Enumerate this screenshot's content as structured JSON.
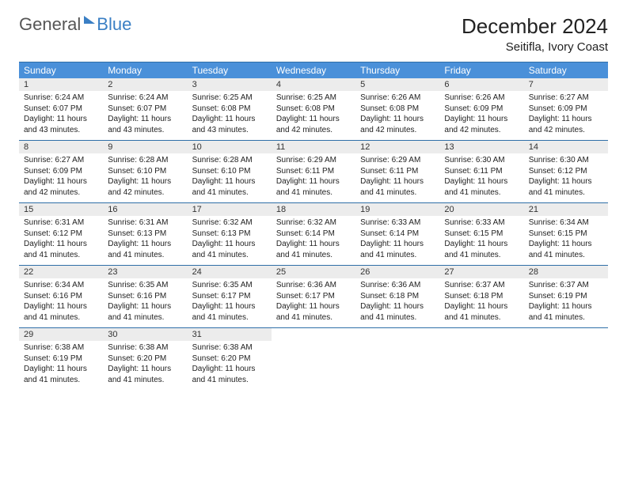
{
  "brand": {
    "word1": "General",
    "word2": "Blue"
  },
  "title": "December 2024",
  "subtitle": "Seitifla, Ivory Coast",
  "colors": {
    "header_bg": "#4a90d9",
    "header_text": "#ffffff",
    "rule": "#2f6fa8",
    "daynum_bg": "#ececec",
    "brand_gray": "#565656",
    "brand_blue": "#3a7fc4"
  },
  "typography": {
    "title_fontsize": 26,
    "subtitle_fontsize": 15,
    "dow_fontsize": 12,
    "daynum_fontsize": 11,
    "body_fontsize": 10
  },
  "dow": [
    "Sunday",
    "Monday",
    "Tuesday",
    "Wednesday",
    "Thursday",
    "Friday",
    "Saturday"
  ],
  "days": [
    {
      "n": "1",
      "sr": "Sunrise: 6:24 AM",
      "ss": "Sunset: 6:07 PM",
      "dl": "Daylight: 11 hours and 43 minutes."
    },
    {
      "n": "2",
      "sr": "Sunrise: 6:24 AM",
      "ss": "Sunset: 6:07 PM",
      "dl": "Daylight: 11 hours and 43 minutes."
    },
    {
      "n": "3",
      "sr": "Sunrise: 6:25 AM",
      "ss": "Sunset: 6:08 PM",
      "dl": "Daylight: 11 hours and 43 minutes."
    },
    {
      "n": "4",
      "sr": "Sunrise: 6:25 AM",
      "ss": "Sunset: 6:08 PM",
      "dl": "Daylight: 11 hours and 42 minutes."
    },
    {
      "n": "5",
      "sr": "Sunrise: 6:26 AM",
      "ss": "Sunset: 6:08 PM",
      "dl": "Daylight: 11 hours and 42 minutes."
    },
    {
      "n": "6",
      "sr": "Sunrise: 6:26 AM",
      "ss": "Sunset: 6:09 PM",
      "dl": "Daylight: 11 hours and 42 minutes."
    },
    {
      "n": "7",
      "sr": "Sunrise: 6:27 AM",
      "ss": "Sunset: 6:09 PM",
      "dl": "Daylight: 11 hours and 42 minutes."
    },
    {
      "n": "8",
      "sr": "Sunrise: 6:27 AM",
      "ss": "Sunset: 6:09 PM",
      "dl": "Daylight: 11 hours and 42 minutes."
    },
    {
      "n": "9",
      "sr": "Sunrise: 6:28 AM",
      "ss": "Sunset: 6:10 PM",
      "dl": "Daylight: 11 hours and 42 minutes."
    },
    {
      "n": "10",
      "sr": "Sunrise: 6:28 AM",
      "ss": "Sunset: 6:10 PM",
      "dl": "Daylight: 11 hours and 41 minutes."
    },
    {
      "n": "11",
      "sr": "Sunrise: 6:29 AM",
      "ss": "Sunset: 6:11 PM",
      "dl": "Daylight: 11 hours and 41 minutes."
    },
    {
      "n": "12",
      "sr": "Sunrise: 6:29 AM",
      "ss": "Sunset: 6:11 PM",
      "dl": "Daylight: 11 hours and 41 minutes."
    },
    {
      "n": "13",
      "sr": "Sunrise: 6:30 AM",
      "ss": "Sunset: 6:11 PM",
      "dl": "Daylight: 11 hours and 41 minutes."
    },
    {
      "n": "14",
      "sr": "Sunrise: 6:30 AM",
      "ss": "Sunset: 6:12 PM",
      "dl": "Daylight: 11 hours and 41 minutes."
    },
    {
      "n": "15",
      "sr": "Sunrise: 6:31 AM",
      "ss": "Sunset: 6:12 PM",
      "dl": "Daylight: 11 hours and 41 minutes."
    },
    {
      "n": "16",
      "sr": "Sunrise: 6:31 AM",
      "ss": "Sunset: 6:13 PM",
      "dl": "Daylight: 11 hours and 41 minutes."
    },
    {
      "n": "17",
      "sr": "Sunrise: 6:32 AM",
      "ss": "Sunset: 6:13 PM",
      "dl": "Daylight: 11 hours and 41 minutes."
    },
    {
      "n": "18",
      "sr": "Sunrise: 6:32 AM",
      "ss": "Sunset: 6:14 PM",
      "dl": "Daylight: 11 hours and 41 minutes."
    },
    {
      "n": "19",
      "sr": "Sunrise: 6:33 AM",
      "ss": "Sunset: 6:14 PM",
      "dl": "Daylight: 11 hours and 41 minutes."
    },
    {
      "n": "20",
      "sr": "Sunrise: 6:33 AM",
      "ss": "Sunset: 6:15 PM",
      "dl": "Daylight: 11 hours and 41 minutes."
    },
    {
      "n": "21",
      "sr": "Sunrise: 6:34 AM",
      "ss": "Sunset: 6:15 PM",
      "dl": "Daylight: 11 hours and 41 minutes."
    },
    {
      "n": "22",
      "sr": "Sunrise: 6:34 AM",
      "ss": "Sunset: 6:16 PM",
      "dl": "Daylight: 11 hours and 41 minutes."
    },
    {
      "n": "23",
      "sr": "Sunrise: 6:35 AM",
      "ss": "Sunset: 6:16 PM",
      "dl": "Daylight: 11 hours and 41 minutes."
    },
    {
      "n": "24",
      "sr": "Sunrise: 6:35 AM",
      "ss": "Sunset: 6:17 PM",
      "dl": "Daylight: 11 hours and 41 minutes."
    },
    {
      "n": "25",
      "sr": "Sunrise: 6:36 AM",
      "ss": "Sunset: 6:17 PM",
      "dl": "Daylight: 11 hours and 41 minutes."
    },
    {
      "n": "26",
      "sr": "Sunrise: 6:36 AM",
      "ss": "Sunset: 6:18 PM",
      "dl": "Daylight: 11 hours and 41 minutes."
    },
    {
      "n": "27",
      "sr": "Sunrise: 6:37 AM",
      "ss": "Sunset: 6:18 PM",
      "dl": "Daylight: 11 hours and 41 minutes."
    },
    {
      "n": "28",
      "sr": "Sunrise: 6:37 AM",
      "ss": "Sunset: 6:19 PM",
      "dl": "Daylight: 11 hours and 41 minutes."
    },
    {
      "n": "29",
      "sr": "Sunrise: 6:38 AM",
      "ss": "Sunset: 6:19 PM",
      "dl": "Daylight: 11 hours and 41 minutes."
    },
    {
      "n": "30",
      "sr": "Sunrise: 6:38 AM",
      "ss": "Sunset: 6:20 PM",
      "dl": "Daylight: 11 hours and 41 minutes."
    },
    {
      "n": "31",
      "sr": "Sunrise: 6:38 AM",
      "ss": "Sunset: 6:20 PM",
      "dl": "Daylight: 11 hours and 41 minutes."
    }
  ]
}
